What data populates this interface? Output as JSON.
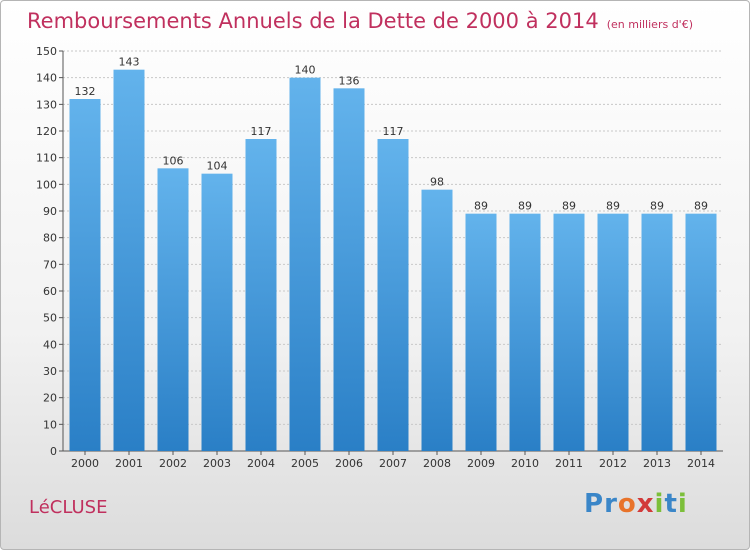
{
  "chart_data": {
    "type": "bar",
    "title": "Remboursements Annuels de la Dette de 2000 à 2014",
    "unit_label": "(en milliers d'€)",
    "categories": [
      "2000",
      "2001",
      "2002",
      "2003",
      "2004",
      "2005",
      "2006",
      "2007",
      "2008",
      "2009",
      "2010",
      "2011",
      "2012",
      "2013",
      "2014"
    ],
    "values": [
      132,
      143,
      106,
      104,
      117,
      140,
      136,
      117,
      98,
      89,
      89,
      89,
      89,
      89,
      89
    ],
    "ylim": [
      0,
      150
    ],
    "yticks": [
      0,
      10,
      20,
      30,
      40,
      50,
      60,
      70,
      80,
      90,
      100,
      110,
      120,
      130,
      140,
      150
    ],
    "grid": true,
    "colors": {
      "bar_top": "#63b3ec",
      "bar_bottom": "#2a7fc6",
      "title": "#c0305e"
    }
  },
  "commune": "LéCLUSE",
  "logo": {
    "letters": [
      "P",
      "r",
      "o",
      "x",
      "i",
      "t",
      "i"
    ],
    "colors": [
      "#3a86c8",
      "#3a86c8",
      "#e8732a",
      "#d23a3a",
      "#7cbf3a",
      "#3a86c8",
      "#7cbf3a"
    ]
  }
}
